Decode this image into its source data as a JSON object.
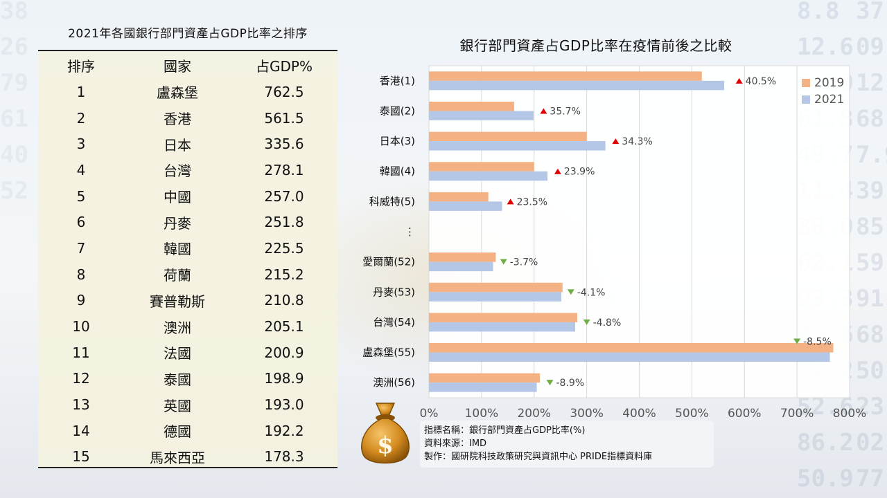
{
  "left_table": {
    "title": "2021年各國銀行部門資產占GDP比率之排序",
    "headers": [
      "排序",
      "國家",
      "占GDP%"
    ],
    "rows": [
      {
        "rank": "1",
        "country": "盧森堡",
        "value": "762.5"
      },
      {
        "rank": "2",
        "country": "香港",
        "value": "561.5"
      },
      {
        "rank": "3",
        "country": "日本",
        "value": "335.6"
      },
      {
        "rank": "4",
        "country": "台灣",
        "value": "278.1"
      },
      {
        "rank": "5",
        "country": "中國",
        "value": "257.0"
      },
      {
        "rank": "6",
        "country": "丹麥",
        "value": "251.8"
      },
      {
        "rank": "7",
        "country": "韓國",
        "value": "225.5"
      },
      {
        "rank": "8",
        "country": "荷蘭",
        "value": "215.2"
      },
      {
        "rank": "9",
        "country": "賽普勒斯",
        "value": "210.8"
      },
      {
        "rank": "10",
        "country": "澳洲",
        "value": "205.1"
      },
      {
        "rank": "11",
        "country": "法國",
        "value": "200.9"
      },
      {
        "rank": "12",
        "country": "泰國",
        "value": "198.9"
      },
      {
        "rank": "13",
        "country": "英國",
        "value": "193.0"
      },
      {
        "rank": "14",
        "country": "德國",
        "value": "192.2"
      },
      {
        "rank": "15",
        "country": "馬來西亞",
        "value": "178.3"
      }
    ]
  },
  "chart_data": {
    "type": "bar",
    "orientation": "horizontal",
    "title": "銀行部門資產占GDP比率在疫情前後之比較",
    "categories": [
      "香港(1)",
      "泰國(2)",
      "日本(3)",
      "韓國(4)",
      "科威特(5)",
      "⋮",
      "愛爾蘭(52)",
      "丹麥(53)",
      "台灣(54)",
      "盧森堡(55)",
      "澳洲(56)"
    ],
    "series": [
      {
        "name": "2019",
        "color": "#f4b183",
        "values": [
          519,
          162,
          300,
          200,
          113,
          null,
          127,
          254,
          282,
          769,
          211
        ]
      },
      {
        "name": "2021",
        "color": "#b4c7e7",
        "values": [
          561.5,
          198.9,
          335.6,
          225.5,
          139,
          null,
          122,
          251.8,
          278.1,
          762.5,
          205.1
        ]
      }
    ],
    "annotations": [
      {
        "category": "香港(1)",
        "text": "40.5%",
        "direction": "up",
        "at": 590
      },
      {
        "category": "泰國(2)",
        "text": "35.7%",
        "direction": "up",
        "at": 218
      },
      {
        "category": "日本(3)",
        "text": "34.3%",
        "direction": "up",
        "at": 355
      },
      {
        "category": "韓國(4)",
        "text": "23.9%",
        "direction": "up",
        "at": 245
      },
      {
        "category": "科威特(5)",
        "text": "23.5%",
        "direction": "up",
        "at": 155
      },
      {
        "category": "愛爾蘭(52)",
        "text": "-3.7%",
        "direction": "down",
        "at": 142
      },
      {
        "category": "丹麥(53)",
        "text": "-4.1%",
        "direction": "down",
        "at": 270
      },
      {
        "category": "台灣(54)",
        "text": "-4.8%",
        "direction": "down",
        "at": 300
      },
      {
        "category": "盧森堡(55)",
        "text": "-8.5%",
        "direction": "down",
        "at": 700,
        "above": true
      },
      {
        "category": "澳洲(56)",
        "text": "-8.9%",
        "direction": "down",
        "at": 230
      }
    ],
    "xaxis": {
      "min": 0,
      "max": 800,
      "step": 100,
      "format": "percent"
    },
    "grid": true,
    "legend": "top-right",
    "up_color": "#e00000",
    "down_color": "#70ad47"
  },
  "source": {
    "line1": "指標名稱：銀行部門資產占GDP比率(%)",
    "line2": "資料來源：IMD",
    "line3": "製作：國研院科技政策研究與資訊中心 PRIDE指標資料庫"
  },
  "icons": {
    "moneybag": "money-bag-icon"
  }
}
